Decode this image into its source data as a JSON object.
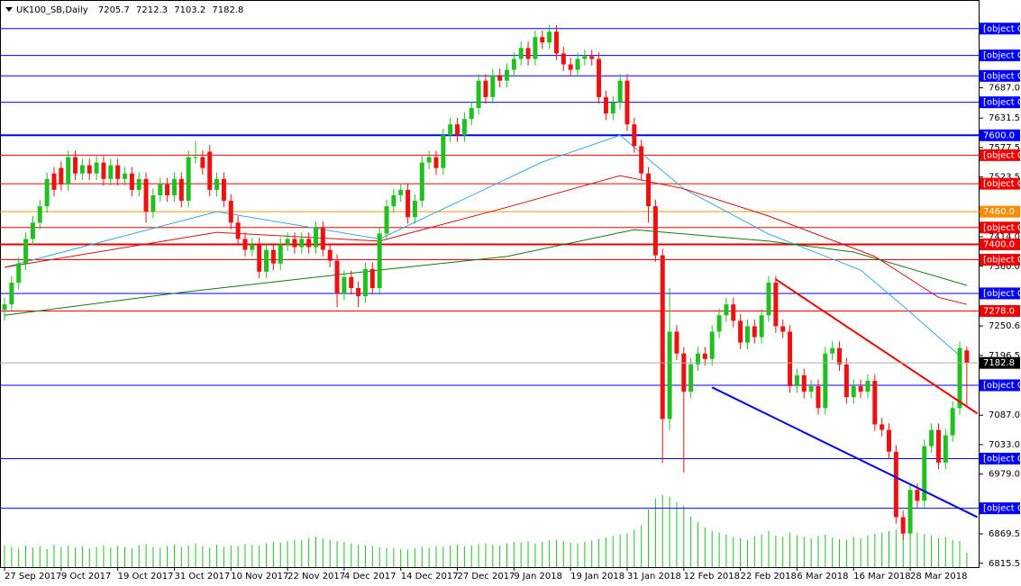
{
  "chart_data": {
    "type": "candlestick",
    "symbol": "UK100_SB,Daily",
    "up_color": "#20c020",
    "down_color": "#ee1111",
    "volume_color": "#20c020",
    "categories": [
      "27 Sep 2017",
      null,
      null,
      null,
      null,
      null,
      null,
      null,
      "9 Oct 2017",
      null,
      null,
      null,
      null,
      null,
      null,
      null,
      "19 Oct 2017",
      null,
      null,
      null,
      null,
      null,
      null,
      null,
      "31 Oct 2017",
      null,
      null,
      null,
      null,
      null,
      null,
      null,
      "10 Nov 2017",
      null,
      null,
      null,
      null,
      null,
      null,
      null,
      "22 Nov 2017",
      null,
      null,
      null,
      null,
      null,
      null,
      null,
      "4 Dec 2017",
      null,
      null,
      null,
      null,
      null,
      null,
      null,
      "14 Dec 2017",
      null,
      null,
      null,
      null,
      null,
      null,
      null,
      "27 Dec 2017",
      null,
      null,
      null,
      null,
      null,
      null,
      null,
      "9 Jan 2018",
      null,
      null,
      null,
      null,
      null,
      null,
      null,
      "19 Jan 2018",
      null,
      null,
      null,
      null,
      null,
      null,
      null,
      "31 Jan 2018",
      null,
      null,
      null,
      null,
      null,
      null,
      null,
      "12 Feb 2018",
      null,
      null,
      null,
      null,
      null,
      null,
      null,
      "22 Feb 2018",
      null,
      null,
      null,
      null,
      null,
      null,
      null,
      "6 Mar 2018",
      null,
      null,
      null,
      null,
      null,
      null,
      null,
      "16 Mar 2018",
      null,
      null,
      null,
      null,
      null,
      null,
      null,
      "28 Mar 2018",
      null,
      null,
      null,
      null,
      null,
      null,
      null,
      null
    ],
    "open": [
      7280,
      7290,
      7330,
      7365,
      7410,
      7440,
      7470,
      7530,
      7540,
      7510,
      7560,
      7530,
      7545,
      7530,
      7550,
      7520,
      7545,
      7520,
      7530,
      7500,
      7520,
      7460,
      7490,
      7510,
      7490,
      7520,
      7480,
      7560,
      7560,
      7570,
      7500,
      7520,
      7480,
      7440,
      7410,
      7390,
      7400,
      7350,
      7390,
      7365,
      7400,
      7410,
      7395,
      7410,
      7395,
      7430,
      7390,
      7370,
      7310,
      7340,
      7320,
      7305,
      7355,
      7320,
      7420,
      7470,
      7490,
      7500,
      7450,
      7480,
      7550,
      7560,
      7540,
      7600,
      7620,
      7600,
      7630,
      7650,
      7700,
      7670,
      7710,
      7700,
      7720,
      7740,
      7760,
      7740,
      7780,
      7770,
      7790,
      7750,
      7730,
      7720,
      7740,
      7745,
      7740,
      7670,
      7640,
      7660,
      7700,
      7620,
      7580,
      7530,
      7470,
      7380,
      7080,
      7240,
      7200,
      7130,
      7180,
      7200,
      7190,
      7240,
      7270,
      7290,
      7260,
      7220,
      7250,
      7230,
      7270,
      7330,
      7250,
      7240,
      7140,
      7160,
      7130,
      7140,
      7100,
      7200,
      7210,
      7180,
      7120,
      7140,
      7130,
      7150,
      7070,
      7060,
      7020,
      6900,
      6870,
      6950,
      6930,
      7030,
      7060,
      7000,
      7050,
      7100,
      7205.7
    ],
    "high": [
      7302,
      7342,
      7377,
      7422,
      7452,
      7482,
      7532,
      7542,
      7552,
      7572,
      7572,
      7557,
      7557,
      7562,
      7562,
      7557,
      7557,
      7542,
      7542,
      7532,
      7532,
      7502,
      7522,
      7522,
      7532,
      7532,
      7572,
      7590,
      7572,
      7582,
      7532,
      7532,
      7492,
      7452,
      7422,
      7412,
      7412,
      7402,
      7402,
      7412,
      7422,
      7422,
      7422,
      7422,
      7442,
      7442,
      7402,
      7382,
      7352,
      7352,
      7332,
      7367,
      7367,
      7432,
      7482,
      7502,
      7512,
      7512,
      7492,
      7562,
      7572,
      7572,
      7612,
      7632,
      7632,
      7642,
      7662,
      7712,
      7712,
      7722,
      7722,
      7732,
      7752,
      7772,
      7772,
      7792,
      7792,
      7802,
      7802,
      7762,
      7742,
      7752,
      7757,
      7757,
      7752,
      7682,
      7672,
      7712,
      7712,
      7632,
      7592,
      7542,
      7482,
      7392,
      7320,
      7252,
      7212,
      7192,
      7212,
      7212,
      7252,
      7282,
      7302,
      7302,
      7272,
      7262,
      7262,
      7282,
      7342,
      7342,
      7262,
      7252,
      7172,
      7172,
      7152,
      7152,
      7212,
      7222,
      7222,
      7192,
      7152,
      7152,
      7162,
      7162,
      7082,
      7072,
      7032,
      6912,
      6962,
      6962,
      7042,
      7072,
      7072,
      7062,
      7112,
      7222,
      7212.3
    ],
    "low": [
      7260,
      7278,
      7318,
      7353,
      7398,
      7428,
      7458,
      7488,
      7498,
      7498,
      7518,
      7518,
      7518,
      7518,
      7508,
      7508,
      7508,
      7508,
      7488,
      7488,
      7440,
      7448,
      7478,
      7478,
      7478,
      7468,
      7468,
      7548,
      7528,
      7488,
      7488,
      7468,
      7428,
      7398,
      7378,
      7378,
      7338,
      7338,
      7353,
      7353,
      7388,
      7383,
      7383,
      7383,
      7383,
      7378,
      7358,
      7285,
      7298,
      7308,
      7285,
      7293,
      7308,
      7308,
      7408,
      7458,
      7478,
      7438,
      7438,
      7468,
      7538,
      7528,
      7528,
      7588,
      7588,
      7588,
      7618,
      7638,
      7658,
      7658,
      7688,
      7688,
      7708,
      7728,
      7728,
      7728,
      7758,
      7758,
      7738,
      7718,
      7708,
      7708,
      7728,
      7728,
      7658,
      7628,
      7628,
      7648,
      7608,
      7568,
      7518,
      7440,
      7368,
      7000,
      7060,
      7188,
      6982,
      7118,
      7168,
      7178,
      7178,
      7228,
      7258,
      7248,
      7208,
      7208,
      7218,
      7218,
      7258,
      7238,
      7228,
      7128,
      7128,
      7118,
      7118,
      7088,
      7088,
      7188,
      7168,
      7108,
      7108,
      7118,
      7118,
      7058,
      7048,
      7008,
      6888,
      6858,
      6858,
      6918,
      6918,
      7018,
      6988,
      6988,
      7038,
      7088,
      7103.2
    ],
    "close": [
      7290,
      7330,
      7365,
      7410,
      7440,
      7470,
      7520,
      7500,
      7510,
      7560,
      7530,
      7545,
      7530,
      7550,
      7520,
      7545,
      7520,
      7530,
      7500,
      7520,
      7460,
      7490,
      7510,
      7490,
      7520,
      7480,
      7560,
      7560,
      7540,
      7500,
      7520,
      7480,
      7440,
      7410,
      7390,
      7400,
      7350,
      7390,
      7365,
      7400,
      7410,
      7395,
      7410,
      7395,
      7430,
      7390,
      7370,
      7310,
      7340,
      7320,
      7305,
      7355,
      7320,
      7420,
      7470,
      7490,
      7500,
      7450,
      7480,
      7550,
      7560,
      7540,
      7600,
      7620,
      7600,
      7630,
      7650,
      7700,
      7670,
      7710,
      7700,
      7720,
      7740,
      7760,
      7740,
      7780,
      7770,
      7790,
      7750,
      7730,
      7720,
      7740,
      7745,
      7740,
      7670,
      7640,
      7660,
      7700,
      7620,
      7580,
      7530,
      7470,
      7380,
      7080,
      7240,
      7200,
      7130,
      7180,
      7200,
      7190,
      7240,
      7270,
      7290,
      7260,
      7220,
      7250,
      7230,
      7270,
      7330,
      7250,
      7240,
      7140,
      7160,
      7130,
      7140,
      7100,
      7200,
      7210,
      7180,
      7120,
      7140,
      7130,
      7150,
      7070,
      7060,
      7020,
      6900,
      6870,
      6950,
      6930,
      7030,
      7060,
      7000,
      7050,
      7100,
      7210,
      7182.8
    ],
    "volume": [
      30,
      28,
      26,
      30,
      27,
      29,
      25,
      31,
      28,
      30,
      27,
      29,
      26,
      28,
      30,
      27,
      29,
      28,
      26,
      30,
      32,
      28,
      27,
      29,
      31,
      28,
      30,
      33,
      29,
      27,
      31,
      28,
      30,
      29,
      32,
      31,
      30,
      33,
      35,
      34,
      36,
      38,
      37,
      40,
      42,
      40,
      38,
      36,
      35,
      33,
      31,
      30,
      29,
      28,
      27,
      26,
      25,
      24,
      26,
      28,
      27,
      29,
      28,
      30,
      31,
      29,
      30,
      32,
      33,
      31,
      30,
      33,
      35,
      34,
      36,
      33,
      35,
      37,
      38,
      36,
      34,
      33,
      35,
      37,
      39,
      41,
      43,
      45,
      47,
      52,
      58,
      80,
      95,
      100,
      98,
      90,
      85,
      70,
      62,
      55,
      50,
      48,
      45,
      42,
      40,
      38,
      43,
      45,
      50,
      44,
      42,
      48,
      44,
      42,
      40,
      43,
      45,
      41,
      39,
      38,
      42,
      40,
      44,
      46,
      48,
      50,
      52,
      55,
      50,
      48,
      46,
      44,
      40,
      42,
      38,
      36,
      20
    ],
    "vlim": [
      0,
      100
    ],
    "ylim": [
      6808.5,
      7848
    ],
    "xlim": [
      -0.64,
      137.8
    ],
    "yticks": [
      {
        "value": 7687,
        "label": "7687.0"
      },
      7631.5,
      7577.5,
      7523.5,
      {
        "value": 7414,
        "label": "7414.0"
      },
      {
        "value": 7360,
        "label": "7360.0"
      },
      7250.6,
      7196.5,
      {
        "value": 7087,
        "label": "7087.0"
      },
      {
        "value": 7033,
        "label": "7033.0"
      },
      {
        "value": 6979,
        "label": "6979.0"
      },
      6869.5,
      6815.5
    ],
    "levels": [
      {
        "value": 7795.6,
        "color": "#0000ff"
      },
      {
        "value": 7746.4,
        "color": "#0000ff"
      },
      {
        "value": 7708.9,
        "color": "#0000ff"
      },
      {
        "value": 7660.5,
        "color": "#0000ff"
      },
      {
        "value": 7600,
        "label": "7600.0",
        "color": "#0000ff",
        "bold": true
      },
      {
        "value": 7563.6,
        "color": "#ee0000"
      },
      {
        "value": 7511.2,
        "color": "#ee0000"
      },
      {
        "value": 7460,
        "label": "7460.0",
        "color": "#ff8c00"
      },
      {
        "value": 7430.9,
        "color": "#ee0000"
      },
      {
        "value": 7400,
        "label": "7400.0",
        "color": "#ee0000",
        "bold": true
      },
      {
        "value": 7371.9,
        "color": "#ee0000"
      },
      {
        "value": 7310.2,
        "color": "#0000ff"
      },
      {
        "value": 7278,
        "label": "7278.0",
        "color": "#ee0000"
      },
      {
        "value": 7141.8,
        "color": "#0000ff"
      },
      {
        "value": 7007.4,
        "color": "#0000ff"
      },
      {
        "value": 6916.3,
        "color": "#0000ff"
      }
    ],
    "ma_lines": [
      {
        "color": "#33aadd",
        "index": [
          0,
          30,
          53,
          76,
          87,
          96,
          108,
          121,
          127,
          135
        ],
        "values": [
          7358,
          7460,
          7410,
          7551,
          7600,
          7502,
          7419,
          7353,
          7287,
          7196
        ]
      },
      {
        "color": "#cc1111",
        "index": [
          0,
          30,
          53,
          71,
          87,
          96,
          108,
          123,
          132,
          136
        ],
        "values": [
          7358,
          7422,
          7406,
          7468,
          7526,
          7502,
          7452,
          7378,
          7303,
          7290
        ]
      },
      {
        "color": "#117711",
        "index": [
          0,
          25,
          53,
          71,
          89,
          108,
          120,
          136
        ],
        "values": [
          7270,
          7312,
          7353,
          7378,
          7427,
          7406,
          7386,
          7325
        ]
      }
    ],
    "trendlines": [
      {
        "color": "#ee0000",
        "index": [
          109,
          137.5
        ],
        "values": [
          7336,
          7090
        ]
      },
      {
        "color": "#0000ee",
        "index": [
          100,
          137.5
        ],
        "values": [
          7138,
          6900
        ]
      }
    ]
  }
}
